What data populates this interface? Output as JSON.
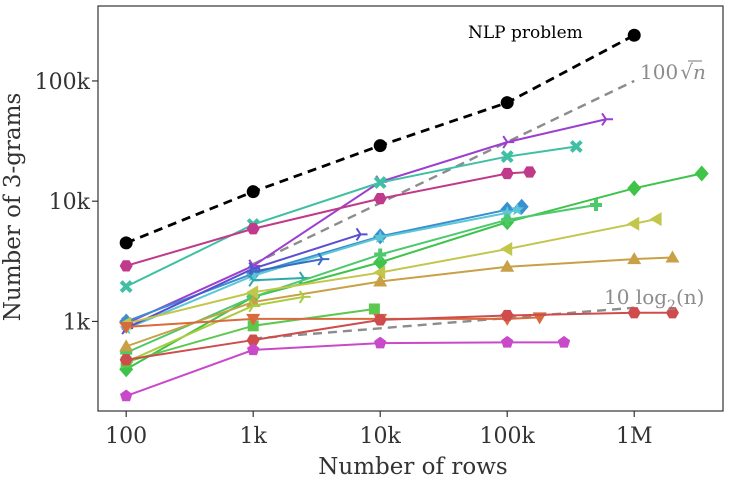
{
  "chart_data": {
    "type": "line",
    "xscale": "log",
    "yscale": "log",
    "xlim": [
      60,
      5000000
    ],
    "ylim": [
      180,
      420000
    ],
    "xlabel": "Number of rows",
    "ylabel": "Number of 3-grams",
    "xticks": [
      {
        "value": 100,
        "label": "100"
      },
      {
        "value": 1000,
        "label": "1k"
      },
      {
        "value": 10000,
        "label": "10k"
      },
      {
        "value": 100000,
        "label": "100k"
      },
      {
        "value": 1000000,
        "label": "1M"
      }
    ],
    "yticks": [
      {
        "value": 1000,
        "label": "1k"
      },
      {
        "value": 10000,
        "label": "10k"
      },
      {
        "value": 100000,
        "label": "100k"
      }
    ],
    "annotations": {
      "nlp": "NLP problem",
      "sqrt_coef": "100",
      "sqrt_arg": "n",
      "log_coef": "10 log",
      "log_base": "2",
      "log_arg": "(n)"
    },
    "reference_lines": [
      {
        "key": "nlp",
        "color": "#000000",
        "marker": "circle",
        "x": [
          100,
          1000,
          10000,
          100000,
          1000000
        ],
        "y": [
          4500,
          12000,
          29000,
          66000,
          240000
        ]
      },
      {
        "key": "sqrt",
        "color": "#8c8c8c",
        "x": [
          1000,
          1000000
        ],
        "y": [
          3000,
          100000
        ]
      },
      {
        "key": "log",
        "color": "#8c8c8c",
        "x": [
          1000,
          1000000
        ],
        "y": [
          720,
          1300
        ]
      }
    ],
    "series": [
      {
        "color": "#9c3fd0",
        "marker": "tri_right",
        "x": [
          100,
          1000,
          10000,
          100000,
          600000
        ],
        "y": [
          960,
          2900,
          14500,
          31000,
          48000
        ]
      },
      {
        "color": "#3fbfa3",
        "marker": "x",
        "x": [
          100,
          1000,
          10000,
          100000,
          350000
        ],
        "y": [
          1950,
          6400,
          14300,
          23500,
          28500
        ]
      },
      {
        "color": "#c0398a",
        "marker": "hexagon",
        "x": [
          100,
          1000,
          10000,
          100000,
          150000
        ],
        "y": [
          2900,
          5900,
          10500,
          17000,
          17500
        ]
      },
      {
        "color": "#3a8fd0",
        "marker": "diamond",
        "x": [
          100,
          1000,
          10000,
          100000,
          130000
        ],
        "y": [
          1000,
          2500,
          5100,
          8500,
          9000
        ]
      },
      {
        "color": "#5bc7d6",
        "marker": "star",
        "x": [
          100,
          1000,
          10000,
          100000,
          120000
        ],
        "y": [
          870,
          2400,
          5000,
          8000,
          8500
        ]
      },
      {
        "color": "#5a4fcf",
        "marker": "tri_right",
        "x": [
          100,
          1000,
          7000
        ],
        "y": [
          880,
          2750,
          5300
        ]
      },
      {
        "color": "#3c6bc6",
        "marker": "tri_right",
        "x": [
          1000,
          3500
        ],
        "y": [
          2600,
          3300
        ]
      },
      {
        "color": "#2fa8a8",
        "marker": "tri_right",
        "x": [
          1000,
          2500
        ],
        "y": [
          2200,
          2300
        ]
      },
      {
        "color": "#3fc34a",
        "marker": "diamond",
        "x": [
          100,
          1000,
          10000,
          100000,
          1000000,
          3400000
        ],
        "y": [
          400,
          1600,
          3100,
          6700,
          12800,
          17000
        ]
      },
      {
        "color": "#4cc96b",
        "marker": "plus",
        "x": [
          100,
          1000,
          10000,
          100000,
          500000
        ],
        "y": [
          550,
          1600,
          3600,
          7000,
          9300
        ]
      },
      {
        "color": "#c2c64a",
        "marker": "tri_left",
        "x": [
          100,
          1000,
          10000,
          100000,
          1000000,
          1500000
        ],
        "y": [
          960,
          1750,
          2550,
          4000,
          6500,
          7100
        ]
      },
      {
        "color": "#c8a046",
        "marker": "triangle",
        "x": [
          100,
          1000,
          10000,
          100000,
          1000000,
          2000000
        ],
        "y": [
          620,
          1450,
          2150,
          2850,
          3300,
          3400
        ]
      },
      {
        "color": "#a9cc40",
        "marker": "tri_right",
        "x": [
          100,
          1000,
          2500
        ],
        "y": [
          460,
          1350,
          1600
        ]
      },
      {
        "color": "#5cc84e",
        "marker": "square",
        "x": [
          100,
          1000,
          9000
        ],
        "y": [
          460,
          920,
          1270
        ]
      },
      {
        "color": "#d86a3c",
        "marker": "tri_down",
        "x": [
          100,
          1000,
          10000,
          100000,
          180000
        ],
        "y": [
          900,
          1050,
          1050,
          1050,
          1080
        ]
      },
      {
        "color": "#cf4c4c",
        "marker": "hexagon",
        "x": [
          100,
          1000,
          10000,
          100000,
          1000000,
          2000000
        ],
        "y": [
          480,
          700,
          1030,
          1120,
          1180,
          1180
        ]
      },
      {
        "color": "#c94ac9",
        "marker": "pentagon",
        "x": [
          100,
          1000,
          10000,
          100000,
          280000
        ],
        "y": [
          240,
          580,
          660,
          670,
          670
        ]
      }
    ]
  }
}
